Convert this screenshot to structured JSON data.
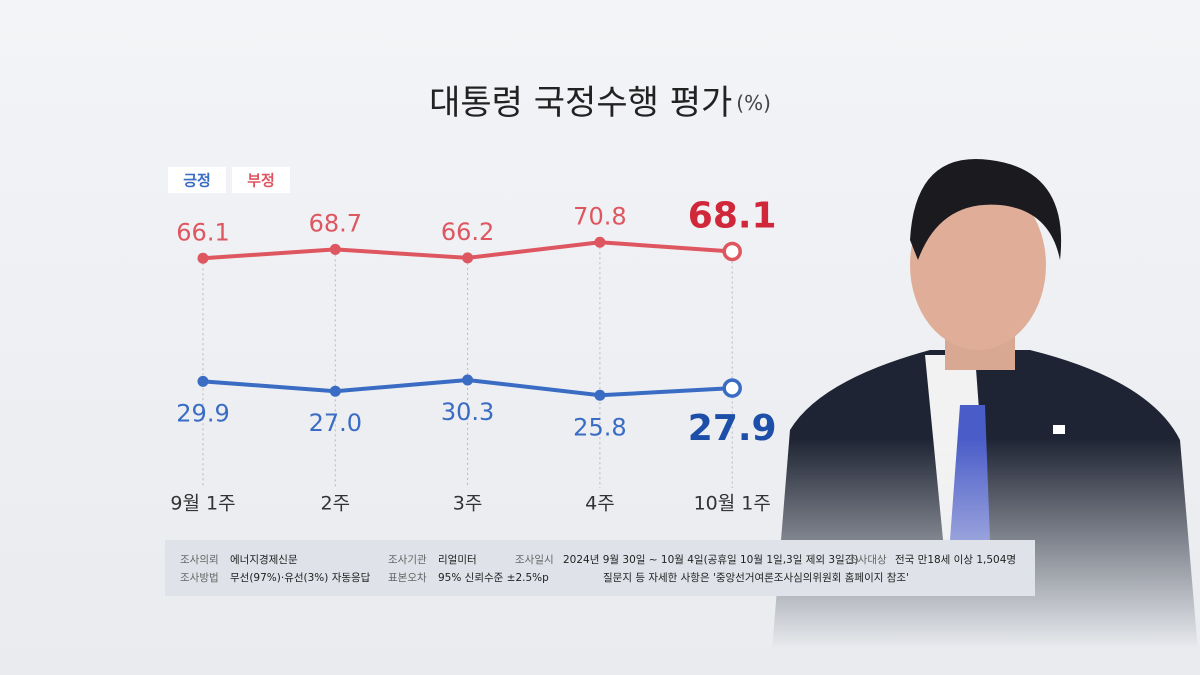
{
  "chart_data": {
    "type": "line",
    "title": "대통령 국정수행 평가",
    "subtitle": "(%)",
    "categories": [
      "9월 1주",
      "2주",
      "3주",
      "4주",
      "10월 1주"
    ],
    "series": [
      {
        "name": "긍정",
        "color": "#3a6cc4",
        "values": [
          29.9,
          27.0,
          30.3,
          25.8,
          27.9
        ],
        "value_labels": [
          "29.9",
          "27.0",
          "30.3",
          "25.8",
          "27.9"
        ]
      },
      {
        "name": "부정",
        "color": "#de5660",
        "values": [
          66.1,
          68.7,
          66.2,
          70.8,
          68.1
        ],
        "value_labels": [
          "66.1",
          "68.7",
          "66.2",
          "70.8",
          "68.1"
        ]
      }
    ]
  },
  "survey_info": {
    "row1": [
      "조사의뢰",
      "에너지경제신문",
      "조사기관",
      "리얼미터",
      "조사일시",
      "2024년 9월 30일 ~ 10월 4일(공휴일 10월 1일,3일 제외 3일간)",
      "조사대상",
      "전국 만18세 이상 1,504명"
    ],
    "row2": [
      "조사방법",
      "무선(97%)·유선(3%) 자동응답",
      "표본오차",
      "95% 신뢰수준 ±2.5%p",
      "질문지 등 자세한 사항은 '중앙선거여론조사심의위원회 홈페이지 참조'"
    ]
  }
}
